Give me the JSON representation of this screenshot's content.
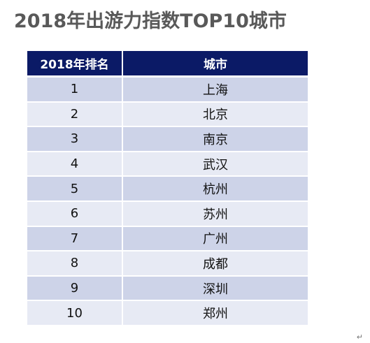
{
  "title": "2018年出游力指数TOP10城市",
  "table": {
    "headers": [
      "2018年排名",
      "城市"
    ],
    "rows": [
      {
        "rank": "1",
        "city": "上海"
      },
      {
        "rank": "2",
        "city": "北京"
      },
      {
        "rank": "3",
        "city": "南京"
      },
      {
        "rank": "4",
        "city": "武汉"
      },
      {
        "rank": "5",
        "city": "杭州"
      },
      {
        "rank": "6",
        "city": "苏州"
      },
      {
        "rank": "7",
        "city": "广州"
      },
      {
        "rank": "8",
        "city": "成都"
      },
      {
        "rank": "9",
        "city": "深圳"
      },
      {
        "rank": "10",
        "city": "郑州"
      }
    ]
  },
  "colors": {
    "header_bg": "#0b1a66",
    "row_dark": "#cdd3e8",
    "row_light": "#e7eaf4",
    "title_text": "#595959"
  },
  "corner_mark": "↵"
}
